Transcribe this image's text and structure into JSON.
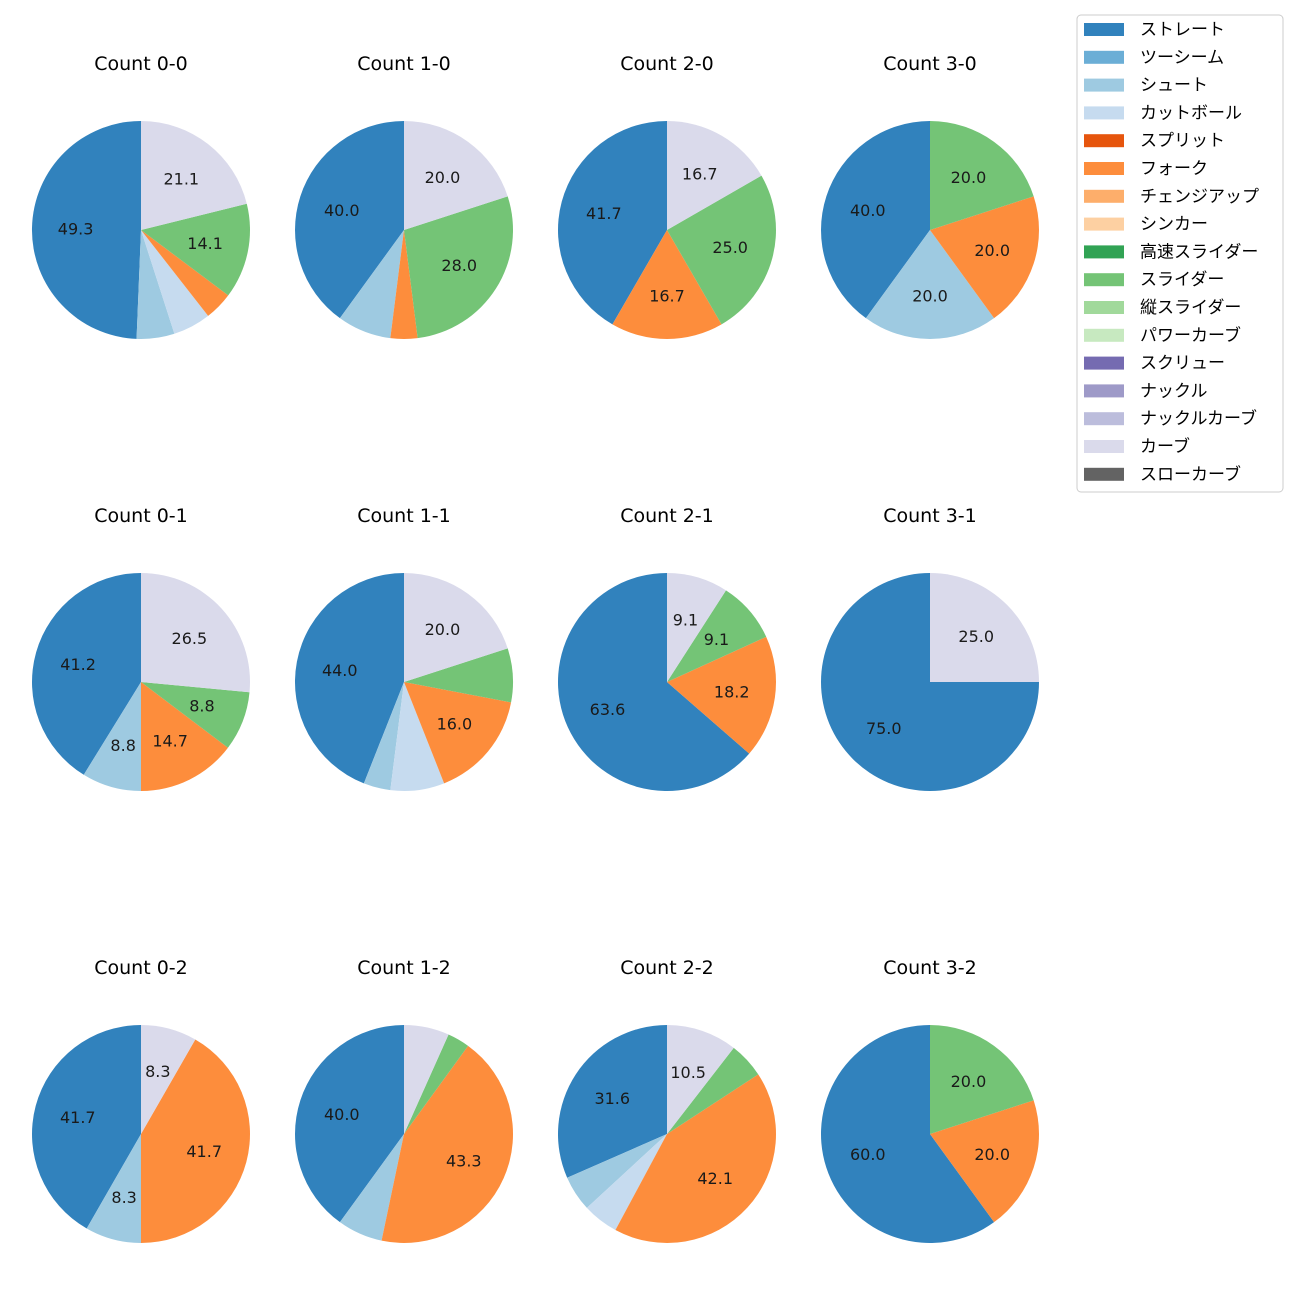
{
  "chart_data": {
    "type": "pie",
    "legend": {
      "placement": "top-right",
      "entries": [
        {
          "name": "ストレート",
          "color": "#3182bd"
        },
        {
          "name": "ツーシーム",
          "color": "#6baed6"
        },
        {
          "name": "シュート",
          "color": "#9ecae1"
        },
        {
          "name": "カットボール",
          "color": "#c6dbef"
        },
        {
          "name": "スプリット",
          "color": "#e6550d"
        },
        {
          "name": "フォーク",
          "color": "#fd8d3c"
        },
        {
          "name": "チェンジアップ",
          "color": "#fdae6b"
        },
        {
          "name": "シンカー",
          "color": "#fdd0a2"
        },
        {
          "name": "高速スライダー",
          "color": "#31a354"
        },
        {
          "name": "スライダー",
          "color": "#74c476"
        },
        {
          "name": "縦スライダー",
          "color": "#a1d99b"
        },
        {
          "name": "パワーカーブ",
          "color": "#c7e9c0"
        },
        {
          "name": "スクリュー",
          "color": "#756bb1"
        },
        {
          "name": "ナックル",
          "color": "#9e9ac8"
        },
        {
          "name": "ナックルカーブ",
          "color": "#bcbddc"
        },
        {
          "name": "カーブ",
          "color": "#dadaeb"
        },
        {
          "name": "スローカーブ",
          "color": "#636363"
        }
      ]
    },
    "charts": [
      {
        "title": "Count 0-0",
        "slices": [
          {
            "name": "ストレート",
            "value": 49.3,
            "label": "49.3"
          },
          {
            "name": "シュート",
            "value": 5.6,
            "label": ""
          },
          {
            "name": "カットボール",
            "value": 5.6,
            "label": ""
          },
          {
            "name": "フォーク",
            "value": 4.2,
            "label": ""
          },
          {
            "name": "スライダー",
            "value": 14.1,
            "label": "14.1"
          },
          {
            "name": "カーブ",
            "value": 21.1,
            "label": "21.1"
          }
        ]
      },
      {
        "title": "Count 1-0",
        "slices": [
          {
            "name": "ストレート",
            "value": 40.0,
            "label": "40.0"
          },
          {
            "name": "シュート",
            "value": 8.0,
            "label": ""
          },
          {
            "name": "フォーク",
            "value": 4.0,
            "label": ""
          },
          {
            "name": "スライダー",
            "value": 28.0,
            "label": "28.0"
          },
          {
            "name": "カーブ",
            "value": 20.0,
            "label": "20.0"
          }
        ]
      },
      {
        "title": "Count 2-0",
        "slices": [
          {
            "name": "ストレート",
            "value": 41.7,
            "label": "41.7"
          },
          {
            "name": "フォーク",
            "value": 16.7,
            "label": "16.7"
          },
          {
            "name": "スライダー",
            "value": 25.0,
            "label": "25.0"
          },
          {
            "name": "カーブ",
            "value": 16.7,
            "label": "16.7"
          }
        ]
      },
      {
        "title": "Count 3-0",
        "slices": [
          {
            "name": "ストレート",
            "value": 40.0,
            "label": "40.0"
          },
          {
            "name": "シュート",
            "value": 20.0,
            "label": "20.0"
          },
          {
            "name": "フォーク",
            "value": 20.0,
            "label": "20.0"
          },
          {
            "name": "スライダー",
            "value": 20.0,
            "label": "20.0"
          }
        ]
      },
      {
        "title": "Count 0-1",
        "slices": [
          {
            "name": "ストレート",
            "value": 41.2,
            "label": "41.2"
          },
          {
            "name": "シュート",
            "value": 8.8,
            "label": "8.8"
          },
          {
            "name": "フォーク",
            "value": 14.7,
            "label": "14.7"
          },
          {
            "name": "スライダー",
            "value": 8.8,
            "label": "8.8"
          },
          {
            "name": "カーブ",
            "value": 26.5,
            "label": "26.5"
          }
        ]
      },
      {
        "title": "Count 1-1",
        "slices": [
          {
            "name": "ストレート",
            "value": 44.0,
            "label": "44.0"
          },
          {
            "name": "シュート",
            "value": 4.0,
            "label": ""
          },
          {
            "name": "カットボール",
            "value": 8.0,
            "label": ""
          },
          {
            "name": "フォーク",
            "value": 16.0,
            "label": "16.0"
          },
          {
            "name": "スライダー",
            "value": 8.0,
            "label": ""
          },
          {
            "name": "カーブ",
            "value": 20.0,
            "label": "20.0"
          }
        ]
      },
      {
        "title": "Count 2-1",
        "slices": [
          {
            "name": "ストレート",
            "value": 63.6,
            "label": "63.6"
          },
          {
            "name": "フォーク",
            "value": 18.2,
            "label": "18.2"
          },
          {
            "name": "スライダー",
            "value": 9.1,
            "label": "9.1"
          },
          {
            "name": "カーブ",
            "value": 9.1,
            "label": "9.1"
          }
        ]
      },
      {
        "title": "Count 3-1",
        "slices": [
          {
            "name": "ストレート",
            "value": 75.0,
            "label": "75.0"
          },
          {
            "name": "カーブ",
            "value": 25.0,
            "label": "25.0"
          }
        ]
      },
      {
        "title": "Count 0-2",
        "slices": [
          {
            "name": "ストレート",
            "value": 41.7,
            "label": "41.7"
          },
          {
            "name": "シュート",
            "value": 8.3,
            "label": "8.3"
          },
          {
            "name": "フォーク",
            "value": 41.7,
            "label": "41.7"
          },
          {
            "name": "カーブ",
            "value": 8.3,
            "label": "8.3"
          }
        ]
      },
      {
        "title": "Count 1-2",
        "slices": [
          {
            "name": "ストレート",
            "value": 40.0,
            "label": "40.0"
          },
          {
            "name": "シュート",
            "value": 6.7,
            "label": ""
          },
          {
            "name": "フォーク",
            "value": 43.3,
            "label": "43.3"
          },
          {
            "name": "スライダー",
            "value": 3.3,
            "label": ""
          },
          {
            "name": "カーブ",
            "value": 6.7,
            "label": ""
          }
        ]
      },
      {
        "title": "Count 2-2",
        "slices": [
          {
            "name": "ストレート",
            "value": 31.6,
            "label": "31.6"
          },
          {
            "name": "シュート",
            "value": 5.3,
            "label": ""
          },
          {
            "name": "カットボール",
            "value": 5.3,
            "label": ""
          },
          {
            "name": "フォーク",
            "value": 42.1,
            "label": "42.1"
          },
          {
            "name": "スライダー",
            "value": 5.3,
            "label": ""
          },
          {
            "name": "カーブ",
            "value": 10.5,
            "label": "10.5"
          }
        ]
      },
      {
        "title": "Count 3-2",
        "slices": [
          {
            "name": "ストレート",
            "value": 60.0,
            "label": "60.0"
          },
          {
            "name": "フォーク",
            "value": 20.0,
            "label": "20.0"
          },
          {
            "name": "スライダー",
            "value": 20.0,
            "label": "20.0"
          }
        ]
      }
    ]
  }
}
